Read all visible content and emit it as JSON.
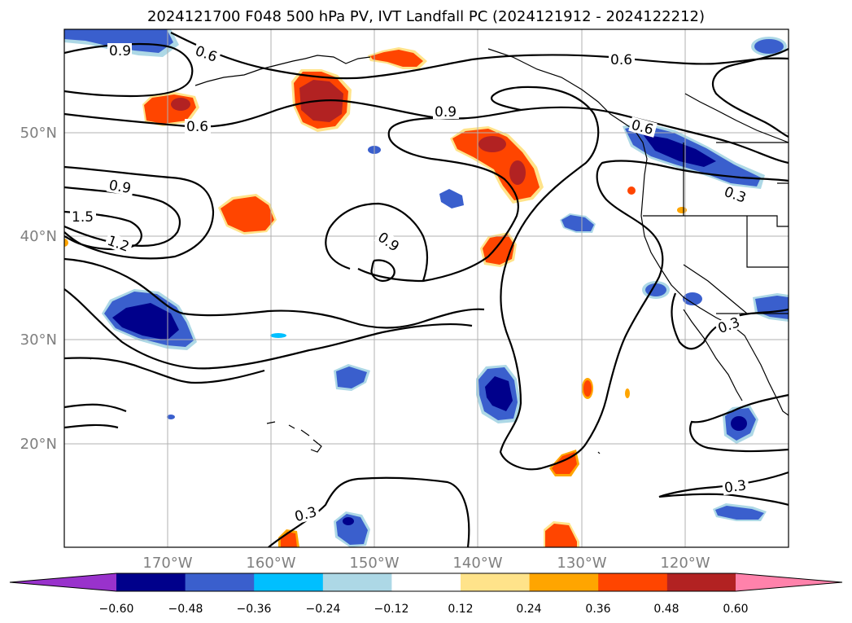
{
  "title": "2024121700 F048 500 hPa PV, IVT Landfall PC (2024121912 - 2024122212)",
  "lon_labels": [
    "170°W",
    "160°W",
    "150°W",
    "140°W",
    "130°W",
    "120°W"
  ],
  "lat_labels": [
    "50°N",
    "40°N",
    "30°N",
    "20°N"
  ],
  "contour_labels": [
    "0.9",
    "0.6",
    "0.6",
    "0.9",
    "0.6",
    "0.6",
    "0.9",
    "1.5",
    "1.2",
    "0.9",
    "0.3",
    "0.3",
    "0.3",
    "0.3"
  ],
  "colorbar": {
    "ticks": [
      "−0.60",
      "−0.48",
      "−0.36",
      "−0.24",
      "−0.12",
      "0.12",
      "0.24",
      "0.36",
      "0.48",
      "0.60"
    ],
    "colors": [
      "#9932CC",
      "#00008B",
      "#3A5FCD",
      "#00BFFF",
      "#ADD8E6",
      "#FFFFFF",
      "#FFE38A",
      "#FFA500",
      "#FF4500",
      "#B22222",
      "#FF82AB"
    ]
  },
  "colors": {
    "neg_strong": "#00008B",
    "neg_mid": "#3A5FCD",
    "neg_light": "#00BFFF",
    "neg_pale": "#ADD8E6",
    "pos_pale": "#FFE38A",
    "pos_light": "#FFA500",
    "pos_mid": "#FF4500",
    "pos_strong": "#B22222",
    "grid": "#b0b0b0",
    "contour": "#000000"
  }
}
